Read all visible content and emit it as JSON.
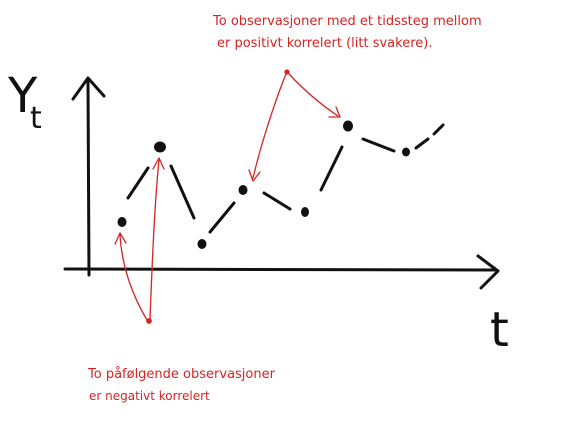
{
  "labels": {
    "y_axis": "Y",
    "y_subscript": "t",
    "x_axis": "t"
  },
  "annotations": {
    "top_line1": "To observasjoner med et tidssteg mellom",
    "top_line2": "er positivt korrelert (litt svakere).",
    "bottom_line1": "To påfølgende observasjoner",
    "bottom_line2": "er negativt korrelert"
  },
  "colors": {
    "ink": "#111111",
    "annotation": "#d42424",
    "background": "#ffffff"
  }
}
